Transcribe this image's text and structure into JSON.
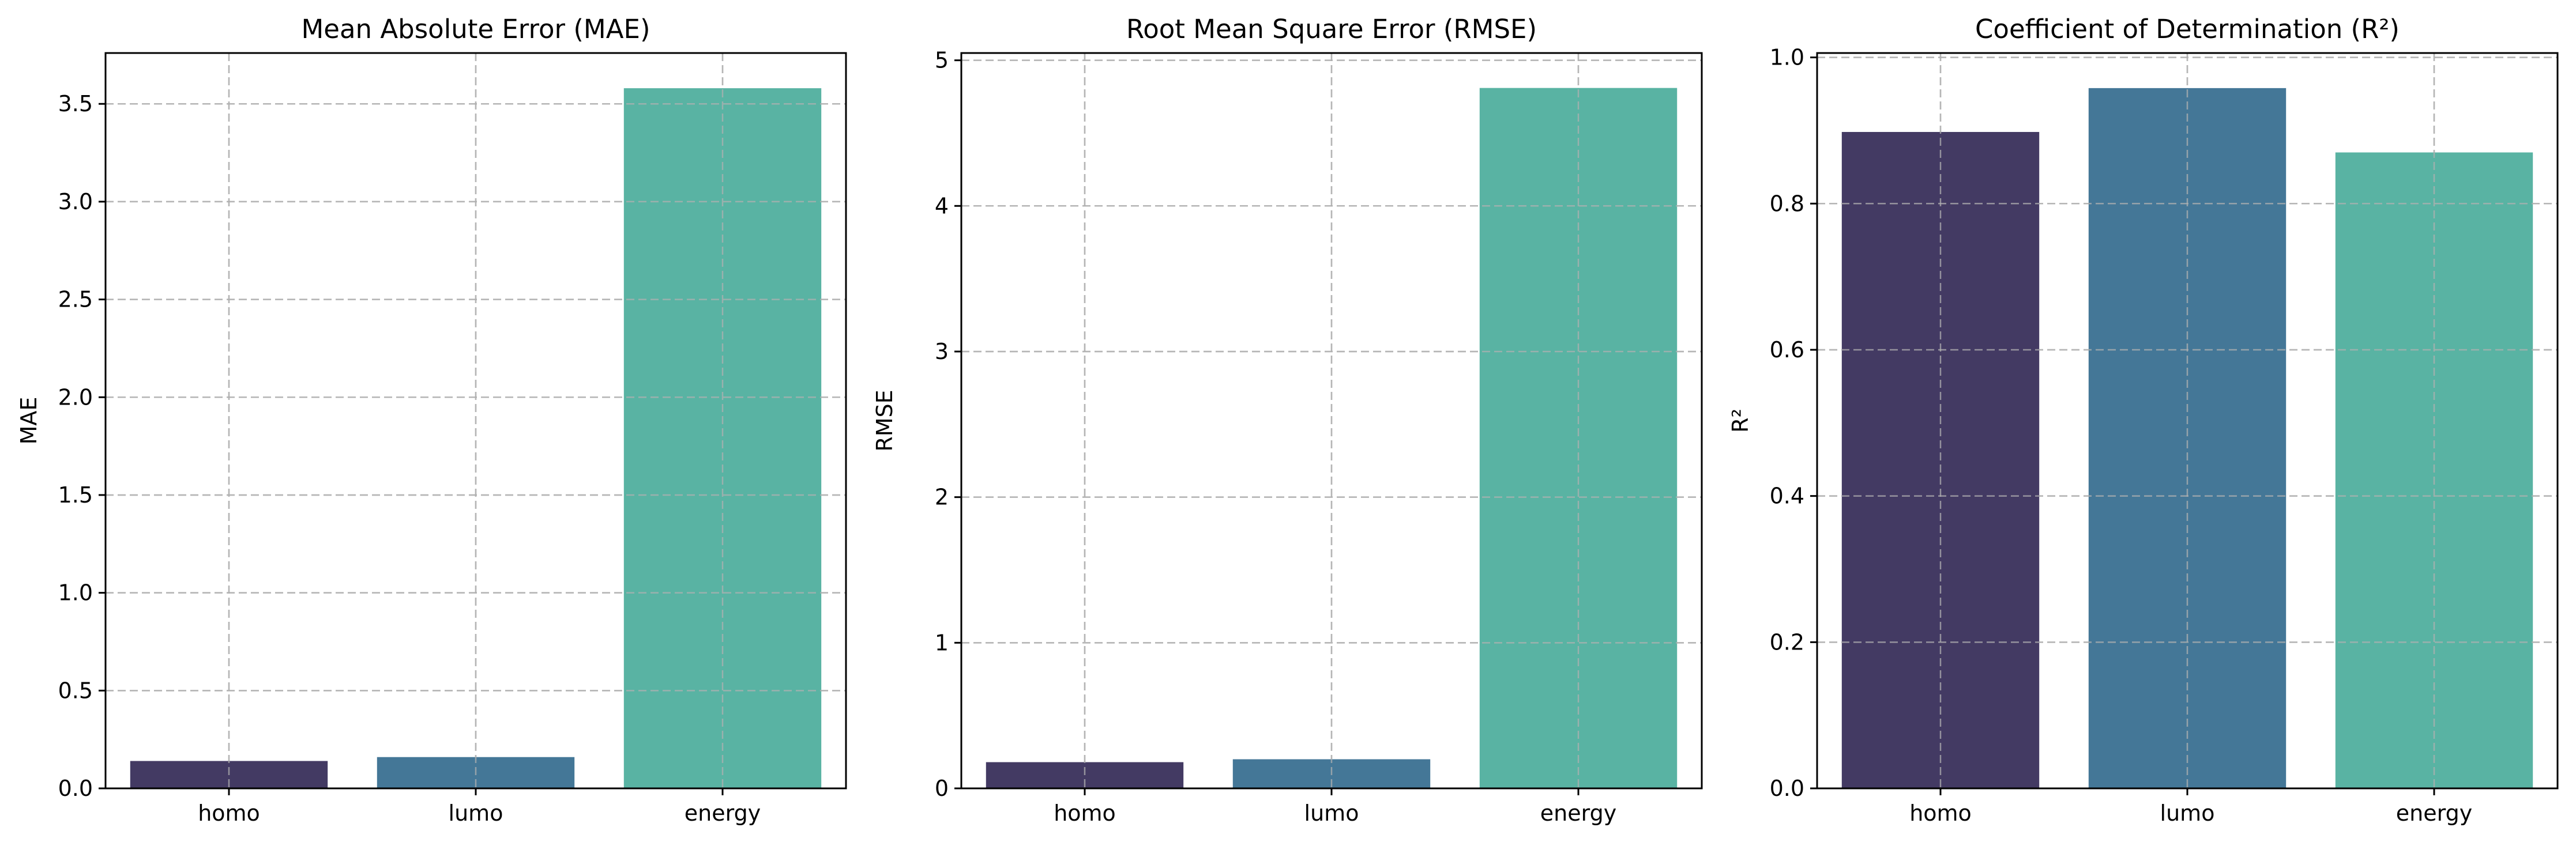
{
  "chart_data": [
    {
      "type": "bar",
      "title": "Mean Absolute Error (MAE)",
      "xlabel": "",
      "ylabel": "MAE",
      "categories": [
        "homo",
        "lumo",
        "energy"
      ],
      "values": [
        0.14,
        0.16,
        3.58
      ],
      "ylim": [
        0,
        3.76
      ],
      "yticks": [
        0.0,
        0.5,
        1.0,
        1.5,
        2.0,
        2.5,
        3.0,
        3.5
      ],
      "ytick_labels": [
        "0.0",
        "0.5",
        "1.0",
        "1.5",
        "2.0",
        "2.5",
        "3.0",
        "3.5"
      ],
      "grid": true
    },
    {
      "type": "bar",
      "title": "Root Mean Square Error (RMSE)",
      "xlabel": "",
      "ylabel": "RMSE",
      "categories": [
        "homo",
        "lumo",
        "energy"
      ],
      "values": [
        0.18,
        0.2,
        4.81
      ],
      "ylim": [
        0,
        5.05
      ],
      "yticks": [
        0,
        1,
        2,
        3,
        4,
        5
      ],
      "ytick_labels": [
        "0",
        "1",
        "2",
        "3",
        "4",
        "5"
      ],
      "grid": true
    },
    {
      "type": "bar",
      "title": "Coefficient of Determination (R²)",
      "xlabel": "",
      "ylabel": "R²",
      "categories": [
        "homo",
        "lumo",
        "energy"
      ],
      "values": [
        0.898,
        0.958,
        0.87
      ],
      "ylim": [
        0,
        1.006
      ],
      "yticks": [
        0.0,
        0.2,
        0.4,
        0.6,
        0.8,
        1.0
      ],
      "ytick_labels": [
        "0.0",
        "0.2",
        "0.4",
        "0.6",
        "0.8",
        "1.0"
      ],
      "grid": true
    }
  ],
  "colors": {
    "homo": "#433a63",
    "lumo": "#447797",
    "energy": "#59b3a3"
  }
}
